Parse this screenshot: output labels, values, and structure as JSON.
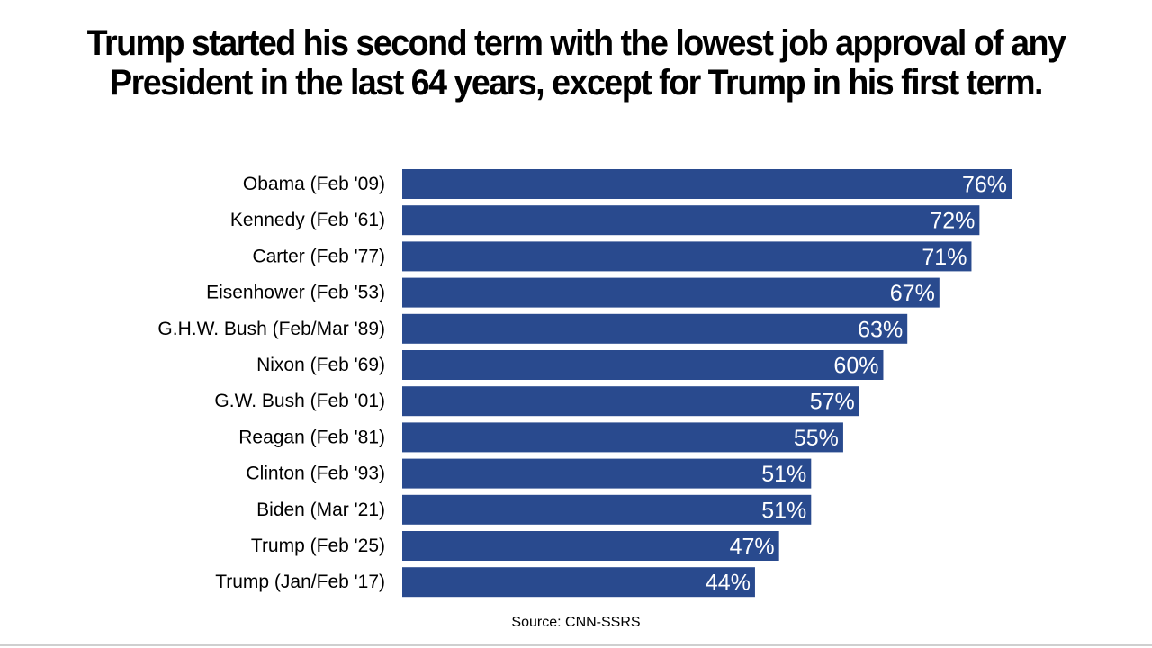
{
  "chart_data": {
    "type": "bar",
    "orientation": "horizontal",
    "title": "Trump started his second term with the lowest job approval of any President in the last 64 years, except for Trump in his first term.",
    "categories": [
      "Obama (Feb '09)",
      "Kennedy (Feb '61)",
      "Carter (Feb '77)",
      "Eisenhower (Feb '53)",
      "G.H.W. Bush (Feb/Mar '89)",
      "Nixon (Feb '69)",
      "G.W. Bush (Feb '01)",
      "Reagan (Feb '81)",
      "Clinton (Feb '93)",
      "Biden (Mar '21)",
      "Trump (Feb '25)",
      "Trump (Jan/Feb '17)"
    ],
    "values": [
      76,
      72,
      71,
      67,
      63,
      60,
      57,
      55,
      51,
      51,
      47,
      44
    ],
    "value_labels": [
      "76%",
      "72%",
      "71%",
      "67%",
      "63%",
      "60%",
      "57%",
      "55%",
      "51%",
      "51%",
      "47%",
      "44%"
    ],
    "xlim": [
      0,
      76
    ],
    "grid": false,
    "legend": "none",
    "bar_color": "#294a8e",
    "label_color": "#ffffff",
    "source": "Source: CNN-SSRS"
  }
}
